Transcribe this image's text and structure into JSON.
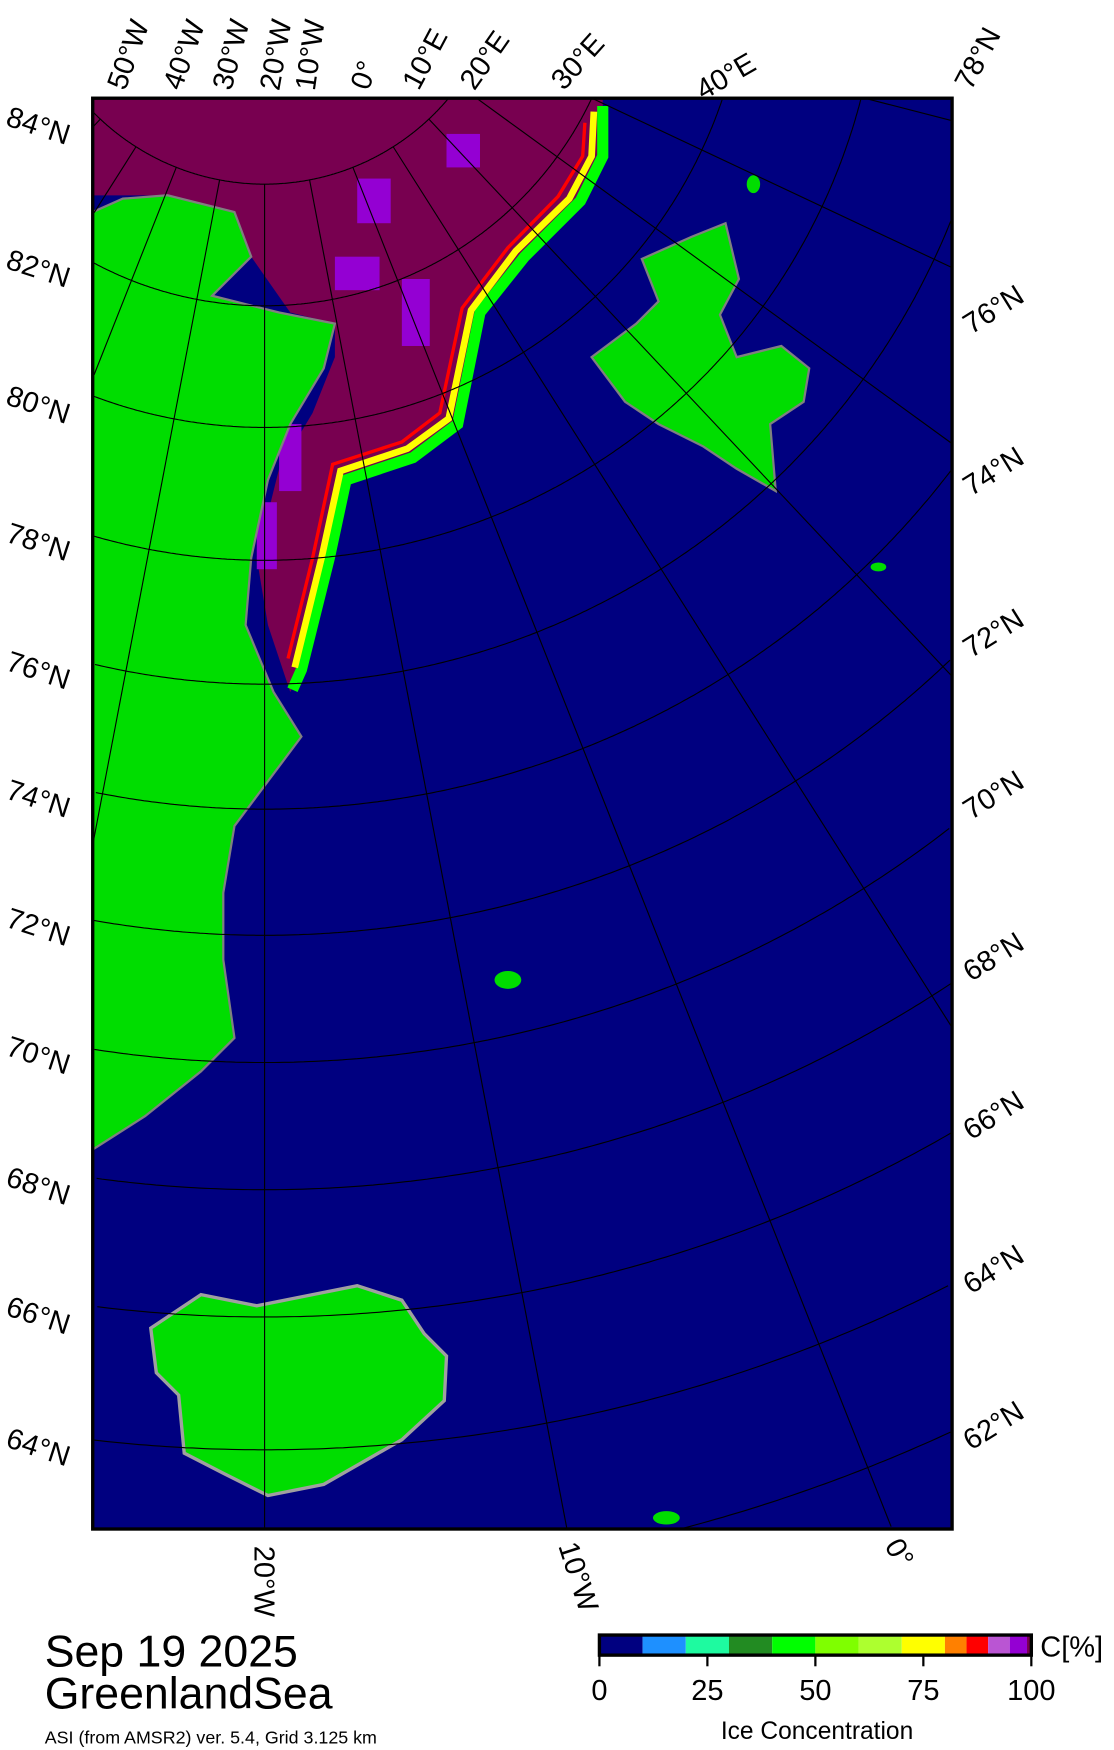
{
  "title": {
    "date": "Sep 19 2025",
    "region": "GreenlandSea",
    "subtitle": "ASI (from AMSR2) ver. 5.4,  Grid 3.125 km"
  },
  "map": {
    "colors": {
      "ocean": "#000080",
      "land": "#00dd00",
      "ice_100": "#780050",
      "coast": "#808080"
    },
    "top_lon_labels": [
      "50°W",
      "40°W",
      "30°W",
      "20°W",
      "10°W",
      "0°",
      "10°E",
      "20°E",
      "30°E",
      "40°E",
      "78°N"
    ],
    "left_lat_labels": [
      "84°N",
      "82°N",
      "80°N",
      "78°N",
      "76°N",
      "74°N",
      "72°N",
      "70°N",
      "68°N",
      "66°N",
      "64°N"
    ],
    "right_lat_labels": [
      "76°N",
      "74°N",
      "72°N",
      "70°N",
      "68°N",
      "66°N",
      "64°N",
      "62°N"
    ],
    "bottom_lon_labels": [
      "20°W",
      "10°W",
      "0°"
    ]
  },
  "colorbar": {
    "unit": "C[%]",
    "label": "Ice Concentration",
    "ticks": [
      "0",
      "25",
      "50",
      "75",
      "100"
    ],
    "range": [
      0,
      100
    ],
    "bins": [
      {
        "from": 0,
        "to": 10,
        "color": "#000080"
      },
      {
        "from": 10,
        "to": 20,
        "color": "#1e90ff"
      },
      {
        "from": 20,
        "to": 30,
        "color": "#1efaa0"
      },
      {
        "from": 30,
        "to": 40,
        "color": "#228b22"
      },
      {
        "from": 40,
        "to": 50,
        "color": "#00ff00"
      },
      {
        "from": 50,
        "to": 60,
        "color": "#7fff00"
      },
      {
        "from": 60,
        "to": 70,
        "color": "#adff2f"
      },
      {
        "from": 70,
        "to": 80,
        "color": "#ffff00"
      },
      {
        "from": 80,
        "to": 85,
        "color": "#ff8000"
      },
      {
        "from": 85,
        "to": 90,
        "color": "#ff0000"
      },
      {
        "from": 90,
        "to": 95,
        "color": "#ba55d3"
      },
      {
        "from": 95,
        "to": 99,
        "color": "#9400d3"
      },
      {
        "from": 99,
        "to": 100,
        "color": "#780050"
      }
    ]
  }
}
